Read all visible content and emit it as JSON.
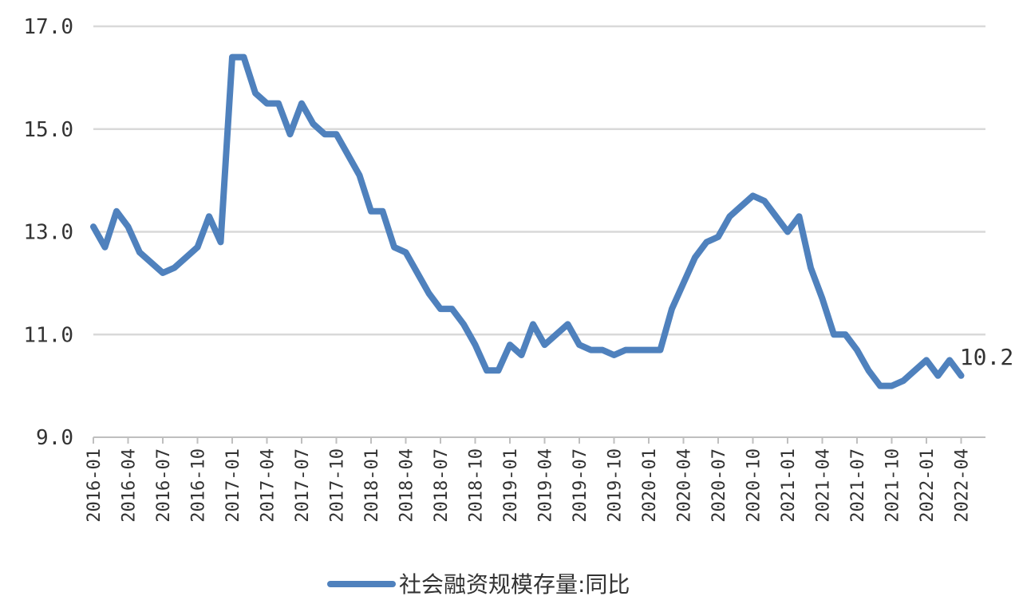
{
  "chart_data": {
    "type": "line",
    "title": "",
    "xlabel": "",
    "ylabel": "",
    "ylim": [
      9.0,
      17.0
    ],
    "y_ticks": [
      "9.0",
      "11.0",
      "13.0",
      "15.0",
      "17.0"
    ],
    "y_tick_values": [
      9,
      11,
      13,
      15,
      17
    ],
    "x_tick_labels": [
      "2016-01",
      "2016-04",
      "2016-07",
      "2016-10",
      "2017-01",
      "2017-04",
      "2017-07",
      "2017-10",
      "2018-01",
      "2018-04",
      "2018-07",
      "2018-10",
      "2019-01",
      "2019-04",
      "2019-07",
      "2019-10",
      "2020-01",
      "2020-04",
      "2020-07",
      "2020-10",
      "2021-01",
      "2021-04",
      "2021-07",
      "2021-10",
      "2022-01",
      "2022-04"
    ],
    "grid": true,
    "legend_position": "bottom",
    "color": "#4f81bd",
    "last_value_label": "10.2",
    "series": [
      {
        "name": "社会融资规模存量:同比",
        "x": [
          "2016-01",
          "2016-02",
          "2016-03",
          "2016-04",
          "2016-05",
          "2016-06",
          "2016-07",
          "2016-08",
          "2016-09",
          "2016-10",
          "2016-11",
          "2016-12",
          "2017-01",
          "2017-02",
          "2017-03",
          "2017-04",
          "2017-05",
          "2017-06",
          "2017-07",
          "2017-08",
          "2017-09",
          "2017-10",
          "2017-11",
          "2017-12",
          "2018-01",
          "2018-02",
          "2018-03",
          "2018-04",
          "2018-05",
          "2018-06",
          "2018-07",
          "2018-08",
          "2018-09",
          "2018-10",
          "2018-11",
          "2018-12",
          "2019-01",
          "2019-02",
          "2019-03",
          "2019-04",
          "2019-05",
          "2019-06",
          "2019-07",
          "2019-08",
          "2019-09",
          "2019-10",
          "2019-11",
          "2019-12",
          "2020-01",
          "2020-02",
          "2020-03",
          "2020-04",
          "2020-05",
          "2020-06",
          "2020-07",
          "2020-08",
          "2020-09",
          "2020-10",
          "2020-11",
          "2020-12",
          "2021-01",
          "2021-02",
          "2021-03",
          "2021-04",
          "2021-05",
          "2021-06",
          "2021-07",
          "2021-08",
          "2021-09",
          "2021-10",
          "2021-11",
          "2021-12",
          "2022-01",
          "2022-02",
          "2022-03",
          "2022-04"
        ],
        "values": [
          13.1,
          12.7,
          13.4,
          13.1,
          12.6,
          12.4,
          12.2,
          12.3,
          12.5,
          12.7,
          13.3,
          12.8,
          16.4,
          16.4,
          15.7,
          15.5,
          15.5,
          14.9,
          15.5,
          15.1,
          14.9,
          14.9,
          14.5,
          14.1,
          13.4,
          13.4,
          12.7,
          12.6,
          12.2,
          11.8,
          11.5,
          11.5,
          11.2,
          10.8,
          10.3,
          10.3,
          10.8,
          10.6,
          11.2,
          10.8,
          11.0,
          11.2,
          10.8,
          10.7,
          10.7,
          10.6,
          10.7,
          10.7,
          10.7,
          10.7,
          11.5,
          12.0,
          12.5,
          12.8,
          12.9,
          13.3,
          13.5,
          13.7,
          13.6,
          13.3,
          13.0,
          13.3,
          12.3,
          11.7,
          11.0,
          11.0,
          10.7,
          10.3,
          10.0,
          10.0,
          10.1,
          10.3,
          10.5,
          10.2,
          10.5,
          10.2
        ]
      }
    ]
  }
}
